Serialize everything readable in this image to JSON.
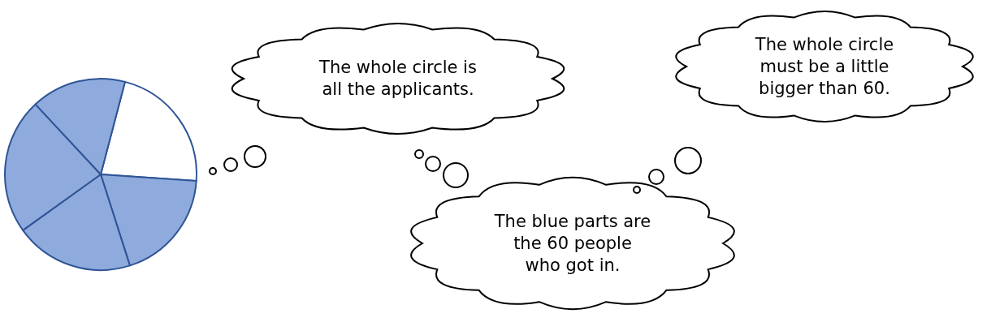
{
  "chart_data": {
    "type": "pie",
    "categories": [
      null,
      null,
      null,
      null,
      null
    ],
    "values": [
      22,
      19,
      20,
      23,
      16
    ],
    "colors": [
      "#ffffff",
      "#8faadc",
      "#8faadc",
      "#8faadc",
      "#8faadc"
    ],
    "annotations": [
      "The whole circle is\nall the applicants.",
      "The blue parts are\nthe 60 people\nwho got in.",
      "The whole circle\nmust be a little\nbigger than 60."
    ]
  }
}
